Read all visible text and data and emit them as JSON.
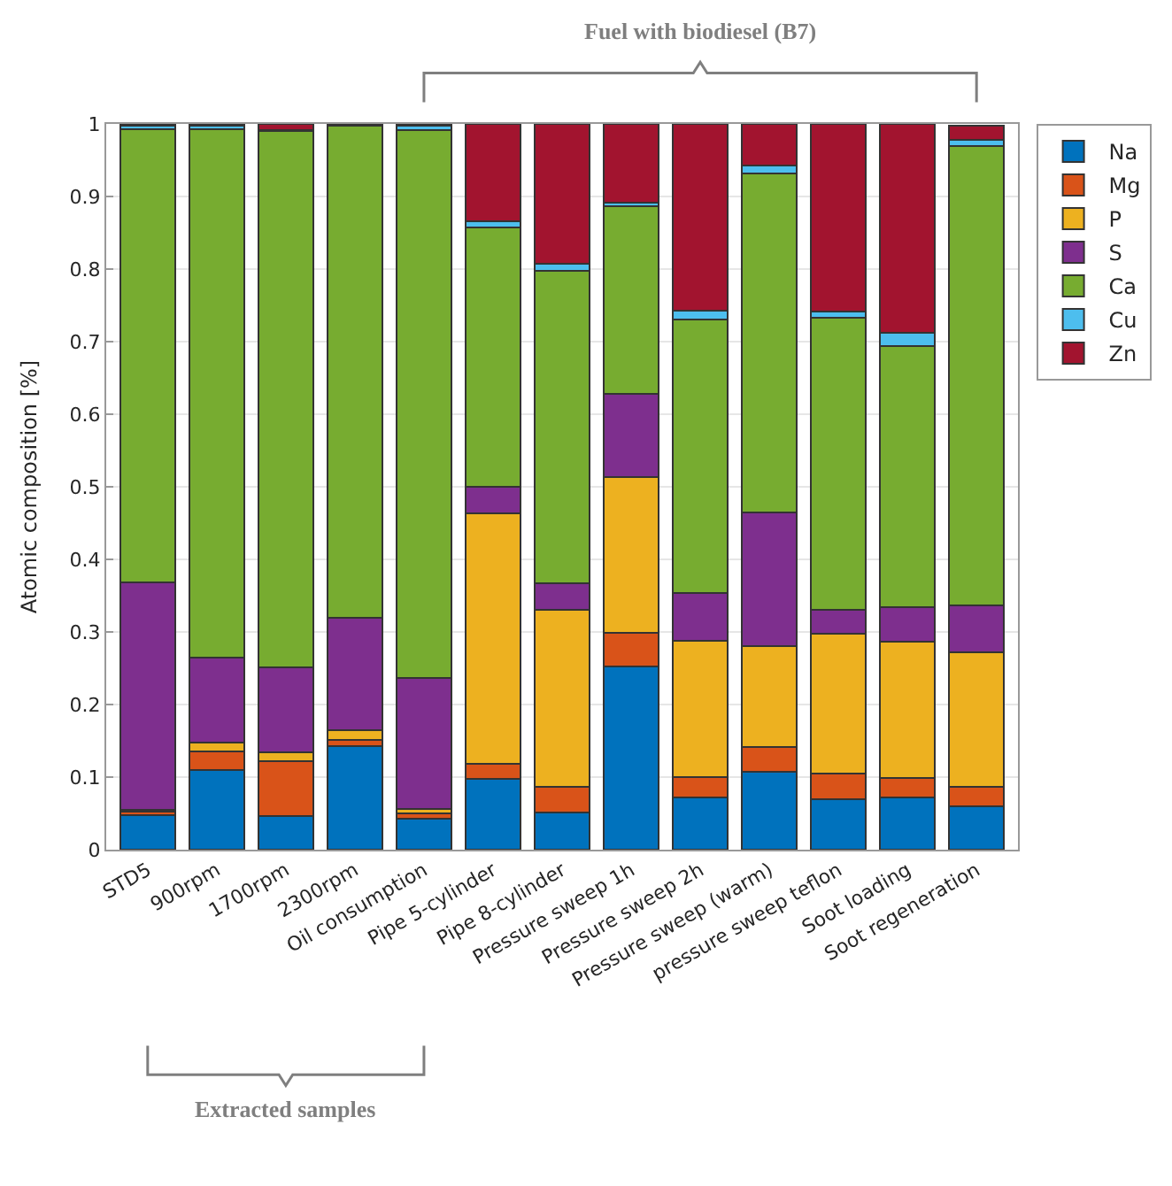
{
  "chart_data": {
    "type": "bar",
    "stacked": true,
    "ylabel": "Atomic composition [%]",
    "categories": [
      "STD5",
      "900rpm",
      "1700rpm",
      "2300rpm",
      "Oil consumption",
      "Pipe 5-cylinder",
      "Pipe 8-cylinder",
      "Pressure sweep 1h",
      "Pressure sweep 2h",
      "Pressure sweep (warm)",
      "pressure sweep teflon",
      "Soot loading",
      "Soot regeneration"
    ],
    "series": [
      {
        "name": "Na",
        "color": "#0072bd",
        "values": [
          0.047,
          0.11,
          0.046,
          0.143,
          0.043,
          0.097,
          0.051,
          0.253,
          0.072,
          0.107,
          0.07,
          0.072,
          0.06
        ]
      },
      {
        "name": "Mg",
        "color": "#d95319",
        "values": [
          0.006,
          0.025,
          0.076,
          0.008,
          0.007,
          0.021,
          0.036,
          0.046,
          0.028,
          0.034,
          0.035,
          0.027,
          0.026
        ]
      },
      {
        "name": "P",
        "color": "#edb120",
        "values": [
          0.002,
          0.013,
          0.012,
          0.014,
          0.006,
          0.345,
          0.244,
          0.215,
          0.188,
          0.14,
          0.193,
          0.187,
          0.186
        ]
      },
      {
        "name": "S",
        "color": "#7e2f8e",
        "values": [
          0.313,
          0.117,
          0.117,
          0.155,
          0.181,
          0.037,
          0.036,
          0.114,
          0.066,
          0.184,
          0.032,
          0.048,
          0.065
        ]
      },
      {
        "name": "Ca",
        "color": "#77ac30",
        "values": [
          0.625,
          0.728,
          0.739,
          0.678,
          0.755,
          0.357,
          0.431,
          0.258,
          0.377,
          0.467,
          0.403,
          0.36,
          0.633
        ]
      },
      {
        "name": "Cu",
        "color": "#4dbeee",
        "values": [
          0.005,
          0.005,
          0.002,
          0.001,
          0.005,
          0.009,
          0.009,
          0.005,
          0.012,
          0.011,
          0.008,
          0.018,
          0.008
        ]
      },
      {
        "name": "Zn",
        "color": "#a2142f",
        "values": [
          0.002,
          0.002,
          0.008,
          0.001,
          0.003,
          0.134,
          0.193,
          0.109,
          0.257,
          0.057,
          0.259,
          0.288,
          0.02
        ]
      }
    ],
    "ylim": [
      0,
      1
    ],
    "yticks": [
      0,
      {
        "value": 0.1,
        "label": "0.1"
      },
      {
        "value": 0.2,
        "label": "0.2"
      },
      {
        "value": 0.3,
        "label": "0.3"
      },
      {
        "value": 0.4,
        "label": "0.4"
      },
      {
        "value": 0.5,
        "label": "0.5"
      },
      {
        "value": 0.6,
        "label": "0.6"
      },
      {
        "value": 0.7,
        "label": "0.7"
      },
      {
        "value": 0.8,
        "label": "0.8"
      },
      {
        "value": 0.9,
        "label": "0.9"
      },
      1
    ],
    "grid": "y",
    "legend": "right",
    "annotations": [
      "Fuel with biodiesel (B7)",
      "Extracted samples"
    ]
  }
}
